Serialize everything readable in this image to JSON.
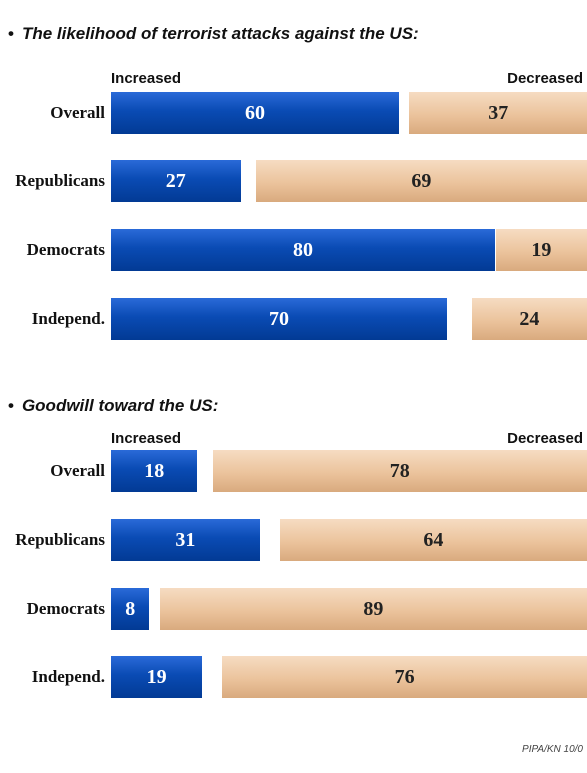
{
  "source": "PIPA/KN 10/0",
  "chart_data": [
    {
      "type": "bar",
      "title": "The likelihood of terrorist attacks against the US:",
      "left_label": "Increased",
      "right_label": "Decreased",
      "categories": [
        "Overall",
        "Republicans",
        "Democrats",
        "Independ."
      ],
      "series": [
        {
          "name": "Increased",
          "values": [
            60,
            27,
            80,
            70
          ],
          "color": "#0a4bb4"
        },
        {
          "name": "Decreased",
          "values": [
            37,
            69,
            19,
            24
          ],
          "color": "#ebc39c"
        }
      ]
    },
    {
      "type": "bar",
      "title": "Goodwill toward the US:",
      "left_label": "Increased",
      "right_label": "Decreased",
      "categories": [
        "Overall",
        "Republicans",
        "Democrats",
        "Independ."
      ],
      "series": [
        {
          "name": "Increased",
          "values": [
            18,
            31,
            8,
            19
          ],
          "color": "#0a4bb4"
        },
        {
          "name": "Decreased",
          "values": [
            78,
            64,
            89,
            76
          ],
          "color": "#ebc39c"
        }
      ]
    }
  ]
}
